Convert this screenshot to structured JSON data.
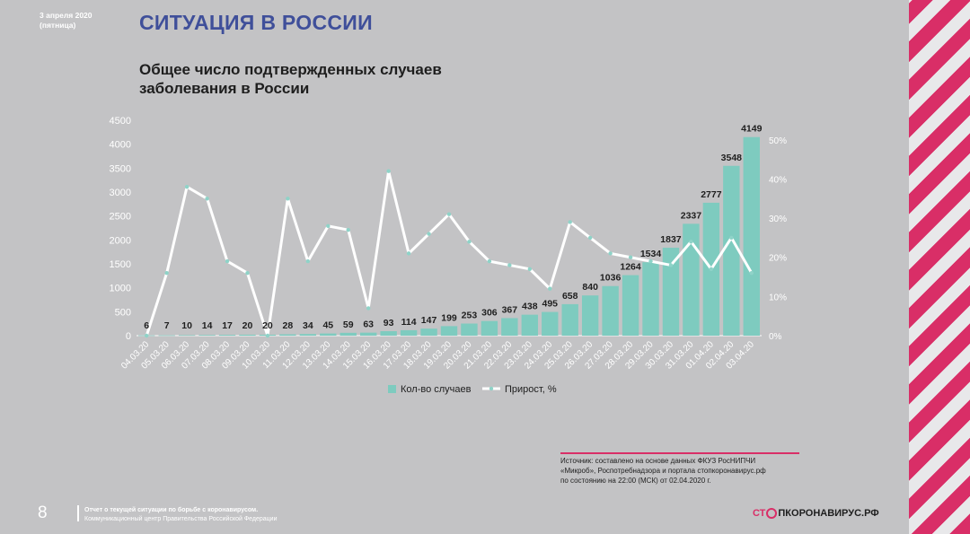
{
  "header": {
    "date_line1": "3 апреля 2020",
    "date_line2": "(пятница)",
    "section_title": "СИТУАЦИЯ В РОССИИ"
  },
  "chart_data": {
    "type": "bar",
    "title": "Общее число подтвержденных случаев заболевания в России",
    "categories": [
      "04.03.20",
      "05.03.20",
      "06.03.20",
      "07.03.20",
      "08.03.20",
      "09.03.20",
      "10.03.20",
      "11.03.20",
      "12.03.20",
      "13.03.20",
      "14.03.20",
      "15.03.20",
      "16.03.20",
      "17.03.20",
      "18.03.20",
      "19.03.20",
      "20.03.20",
      "21.03.20",
      "22.03.20",
      "23.03.20",
      "24.03.20",
      "25.03.20",
      "26.03.20",
      "27.03.20",
      "28.03.20",
      "29.03.20",
      "30.03.20",
      "31.03.20",
      "01.04.20",
      "02.04.20",
      "03.04.20"
    ],
    "series": [
      {
        "name": "Кол-во случаев",
        "axis": "left",
        "color": "#7ecbbf",
        "values": [
          6,
          7,
          10,
          14,
          17,
          20,
          20,
          28,
          34,
          45,
          59,
          63,
          93,
          114,
          147,
          199,
          253,
          306,
          367,
          438,
          495,
          658,
          840,
          1036,
          1264,
          1534,
          1837,
          2337,
          2777,
          3548,
          4149
        ],
        "labels": [
          "6",
          "7",
          "10",
          "14",
          "17",
          "20",
          "20",
          "28",
          "34",
          "45",
          "59",
          "63",
          "93",
          "114",
          "147",
          "199",
          "253",
          "306",
          "367",
          "438",
          "495",
          "658",
          "840",
          "1036",
          "1264",
          "1534",
          "1837",
          "2337",
          "2777",
          "3548",
          "4149"
        ]
      },
      {
        "name": "Прирост, %",
        "axis": "right",
        "color": "#ffffff",
        "values": [
          0,
          16,
          38,
          35,
          19,
          16,
          0,
          35,
          19,
          28,
          27,
          7,
          42,
          21,
          26,
          31,
          24,
          19,
          18,
          17,
          12,
          29,
          25,
          21,
          20,
          19,
          18,
          24,
          17,
          25,
          16
        ]
      }
    ],
    "y_left": {
      "min": 0,
      "max": 4500,
      "ticks": [
        "0",
        "500",
        "1000",
        "1500",
        "2000",
        "2500",
        "3000",
        "3500",
        "4000",
        "4500"
      ]
    },
    "y_right": {
      "min": 0,
      "max": 55,
      "ticks": [
        "0%",
        "10%",
        "20%",
        "30%",
        "40%",
        "50%"
      ]
    },
    "legend_placement": "bottom"
  },
  "source": {
    "line1": "Источник: составлено на основе данных ФКУЗ РосНИПЧИ",
    "line2": "«Микроб», Роспотребнадзора и портала стопкоронавирус.рф",
    "line3": "по состоянию на 22:00 (МСК) от 02.04.2020 г."
  },
  "footer": {
    "page_number": "8",
    "line1": "Отчет о текущей ситуации по борьбе с коронавирусом.",
    "line2": "Коммуникационный центр Правительства Российской Федерации"
  },
  "logo": {
    "part1": "СТ",
    "part2": "ПКОРОНАВИРУС.РФ"
  }
}
